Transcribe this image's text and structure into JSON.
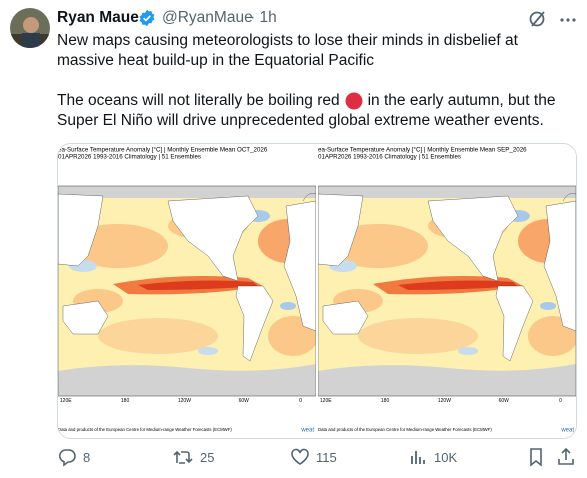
{
  "author": {
    "name": "Ryan Maue",
    "handle": "@RyanMaue",
    "time": "· 1h"
  },
  "text": {
    "line1": "New maps causing meteorologists to lose their minds in disbelief at",
    "line2": "massive heat build-up in the Equatorial Pacific",
    "line3a": "The oceans will not literally be boiling red",
    "line3b": "in the early autumn, but the",
    "line4": "Super El Niño will drive unprecedented global extreme weather events."
  },
  "media": [
    {
      "title": "ea-Surface Temperature Anomaly [°C] | Monthly Ensemble Mean OCT_2026",
      "subtitle": "01APR2026    1993-2016 Climatology | 51 Ensembles",
      "lon_labels": [
        "120E",
        "180",
        "120W",
        "60W",
        "0"
      ],
      "credit": "Data and products of the European Centre for Medium-range Weather Forecasts (ECMWF)",
      "logo": "weat"
    },
    {
      "title": "ea-Surface Temperature Anomaly [°C] | Monthly Ensemble Mean SEP_2026",
      "subtitle": "01APR2026    1993-2016 Climatology | 51 Ensembles",
      "lon_labels": [
        "120E",
        "180",
        "120W",
        "60W",
        "0"
      ],
      "credit": "Data and products of the European Centre for Medium-range Weather Forecasts (ECMWF)",
      "logo": "weat"
    }
  ],
  "actions": {
    "replies": 8,
    "reposts": 25,
    "likes": 115,
    "views": "10K"
  }
}
